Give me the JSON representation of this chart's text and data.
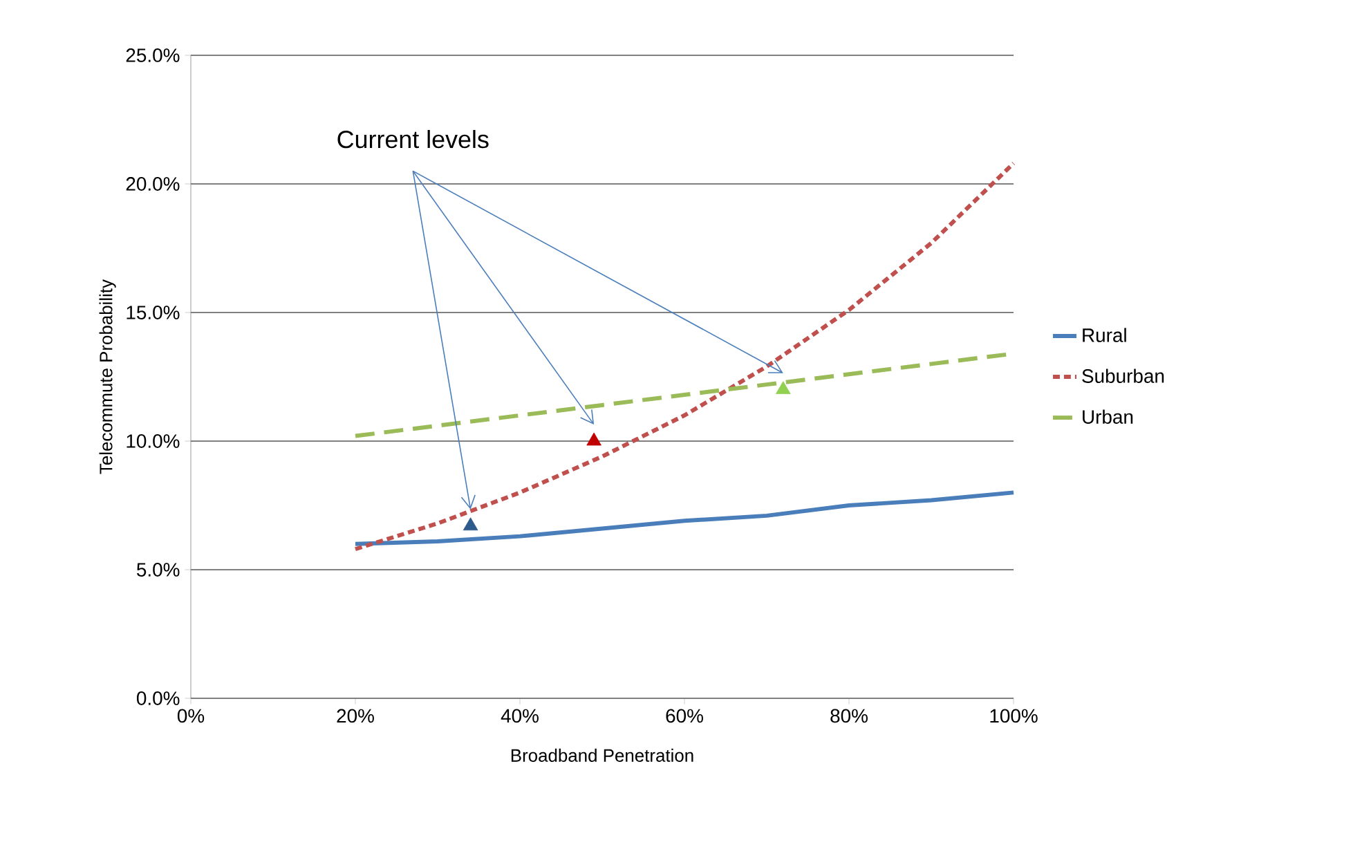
{
  "chart_data": {
    "type": "line",
    "xlabel": "Broadband Penetration",
    "ylabel": "Telecommute Probability",
    "x": [
      20,
      30,
      40,
      50,
      60,
      70,
      80,
      90,
      100
    ],
    "series": [
      {
        "name": "Rural",
        "color": "#4a7ebb",
        "line_style": "solid",
        "values": [
          6.0,
          6.1,
          6.3,
          6.6,
          6.9,
          7.1,
          7.5,
          7.7,
          8.0
        ]
      },
      {
        "name": "Suburban",
        "color": "#c0504d",
        "line_style": "dotted",
        "values": [
          5.8,
          6.8,
          8.0,
          9.4,
          11.0,
          12.9,
          15.1,
          17.7,
          20.8
        ]
      },
      {
        "name": "Urban",
        "color": "#9bbb59",
        "line_style": "dashed",
        "values": [
          10.2,
          10.6,
          11.0,
          11.4,
          11.8,
          12.2,
          12.6,
          13.0,
          13.4
        ]
      },
      {
        "type": "scatter",
        "marker": "triangle",
        "color": "#2f5a8c",
        "x": [
          34
        ],
        "values": [
          6.7
        ]
      },
      {
        "type": "scatter",
        "marker": "triangle",
        "color": "#c00000",
        "x": [
          49
        ],
        "values": [
          10.0
        ]
      },
      {
        "type": "scatter",
        "marker": "triangle",
        "color": "#92d050",
        "x": [
          72
        ],
        "values": [
          12.0
        ]
      }
    ],
    "xlim": [
      0,
      100
    ],
    "ylim": [
      0,
      25
    ],
    "xticks": [
      {
        "value": 0,
        "label": "0%"
      },
      {
        "value": 20,
        "label": "20%"
      },
      {
        "value": 40,
        "label": "40%"
      },
      {
        "value": 60,
        "label": "60%"
      },
      {
        "value": 80,
        "label": "80%"
      },
      {
        "value": 100,
        "label": "100%"
      }
    ],
    "yticks": [
      {
        "value": 0,
        "label": "0.0%"
      },
      {
        "value": 5,
        "label": "5.0%"
      },
      {
        "value": 10,
        "label": "10.0%"
      },
      {
        "value": 15,
        "label": "15.0%"
      },
      {
        "value": 20,
        "label": "20.0%"
      },
      {
        "value": 25,
        "label": "25.0%"
      }
    ],
    "grid": "y",
    "legend": "right",
    "annotations": [
      "Current levels"
    ]
  }
}
